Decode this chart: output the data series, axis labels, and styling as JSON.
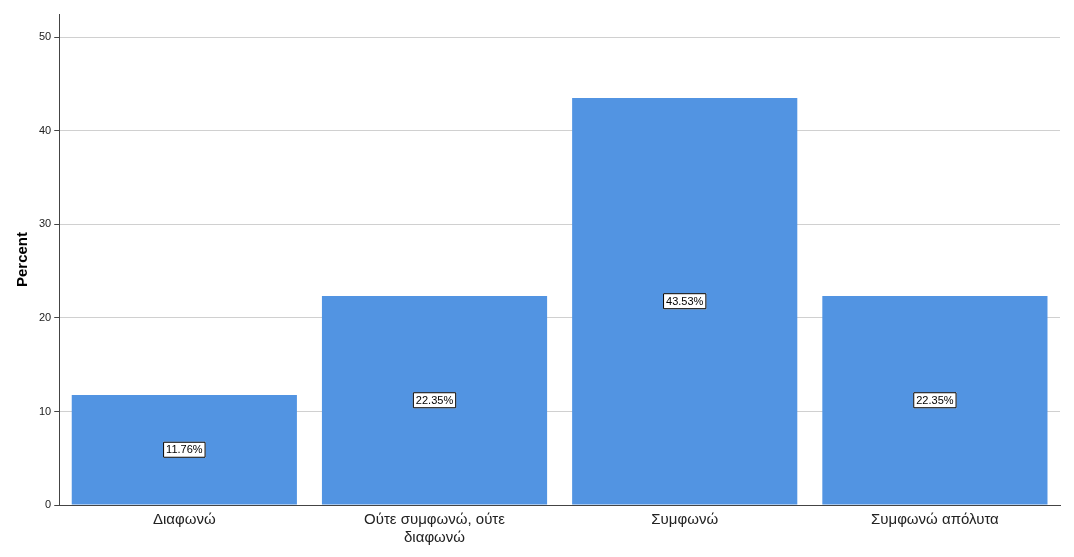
{
  "chart_data": {
    "type": "bar",
    "ylabel": "Percent",
    "categories": [
      "Διαφωνώ",
      "Ούτε συμφωνώ, ούτε διαφωνώ",
      "Συμφωνώ",
      "Συμφωνώ απόλυτα"
    ],
    "values": [
      11.76,
      22.35,
      43.53,
      22.35
    ],
    "value_labels": [
      "11.76%",
      "22.35%",
      "43.53%",
      "22.35%"
    ],
    "color": "#5294e2",
    "ylim": [
      0,
      52.5
    ],
    "yticks": [
      0,
      10,
      20,
      30,
      40,
      50
    ],
    "grid": "y",
    "legend": false
  }
}
